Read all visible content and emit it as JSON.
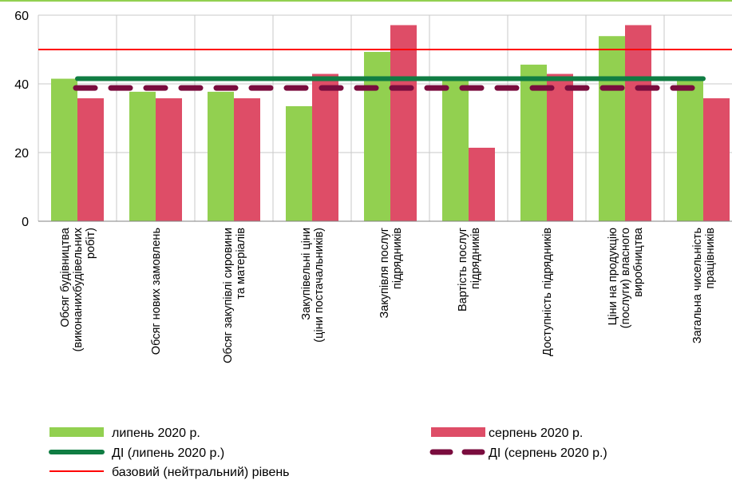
{
  "chart_data": {
    "type": "bar",
    "title": "",
    "xlabel": "",
    "ylabel": "",
    "ylim": [
      0,
      60
    ],
    "yticks": [
      "0",
      "20",
      "40",
      "60"
    ],
    "grid": "major y and x category separators",
    "categories": [
      [
        "Обсяг будівництва",
        "(виконанихбудівельних",
        "робіт)"
      ],
      [
        "Обсяг нових замовлень"
      ],
      [
        "Обсяг закупівлі сировини",
        "та матеріалів"
      ],
      [
        "Закупівельні ціни",
        "(ціни постачальників)"
      ],
      [
        "Закупівля послуг",
        "підрядників"
      ],
      [
        "Вартість послуг",
        "підрядників"
      ],
      [
        "Доступність підрядників"
      ],
      [
        "Ціни на продукцію",
        "(послуги) власного",
        "виробництва"
      ],
      [
        "Загальна чисельність",
        "працівників"
      ]
    ],
    "series": [
      {
        "name": "липень 2020 р.",
        "color": "#92d050",
        "values": [
          41.5,
          37.7,
          37.7,
          33.5,
          49.3,
          41.5,
          45.6,
          53.9,
          41.5
        ]
      },
      {
        "name": "серпень 2020 р.",
        "color": "#de4d67",
        "values": [
          35.8,
          35.8,
          35.8,
          42.9,
          57.1,
          21.4,
          42.9,
          57.1,
          35.8
        ]
      }
    ],
    "lines": [
      {
        "name": "ДІ (липень 2020 р.)",
        "value": 41.5,
        "color": "#107d43",
        "style": "solid"
      },
      {
        "name": "ДІ (серпень 2020 р.)",
        "value": 38.8,
        "color": "#7a0c3e",
        "style": "dashed"
      },
      {
        "name": "базовий (нейтральний) рівень",
        "value": 50,
        "color": "#ff0000",
        "style": "solid"
      }
    ],
    "legend": {
      "placement": "bottom",
      "items": [
        {
          "label": "липень 2020 р.",
          "kind": "bar",
          "color": "#92d050"
        },
        {
          "label": "серпень 2020 р.",
          "kind": "bar",
          "color": "#de4d67"
        },
        {
          "label": "ДІ (липень 2020 р.)",
          "kind": "line",
          "color": "#107d43"
        },
        {
          "label": "ДІ (серпень 2020 р.)",
          "kind": "dash",
          "color": "#7a0c3e"
        },
        {
          "label": "базовий (нейтральний) рівень",
          "kind": "thin",
          "color": "#ff0000"
        }
      ]
    }
  }
}
